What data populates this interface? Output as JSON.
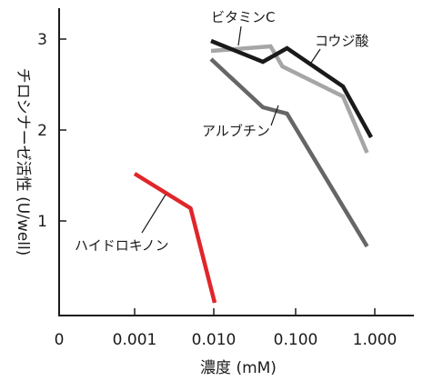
{
  "chart_data": {
    "type": "line",
    "title": "",
    "xlabel": "濃度 (mM)",
    "ylabel": "チロシナーゼ活性 (U/well)",
    "x_scale": "log",
    "x_tick_labels": [
      "0",
      "0.001",
      "0.010",
      "0.100",
      "1.000"
    ],
    "y_ticks": [
      1,
      2,
      3
    ],
    "ylim": [
      0,
      3.35
    ],
    "grid": false,
    "legend": "none (series labeled directly on the chart)",
    "series": [
      {
        "name": "ビタミンC",
        "color": "#a6a6a6",
        "x": [
          0.009,
          0.05,
          0.07,
          0.4,
          0.8
        ],
        "y": [
          2.87,
          2.92,
          2.7,
          2.37,
          1.75
        ]
      },
      {
        "name": "コウジ酸",
        "color": "#1a1a1a",
        "x": [
          0.009,
          0.04,
          0.08,
          0.4,
          0.9
        ],
        "y": [
          2.98,
          2.75,
          2.9,
          2.48,
          1.92
        ]
      },
      {
        "name": "アルブチン",
        "color": "#666666",
        "x": [
          0.009,
          0.04,
          0.08,
          0.8
        ],
        "y": [
          2.78,
          2.25,
          2.18,
          0.72
        ]
      },
      {
        "name": "ハイドロキノン",
        "color": "#e0262b",
        "x": [
          0.001,
          0.005,
          0.01
        ],
        "y": [
          1.52,
          1.14,
          0.1
        ]
      }
    ]
  }
}
